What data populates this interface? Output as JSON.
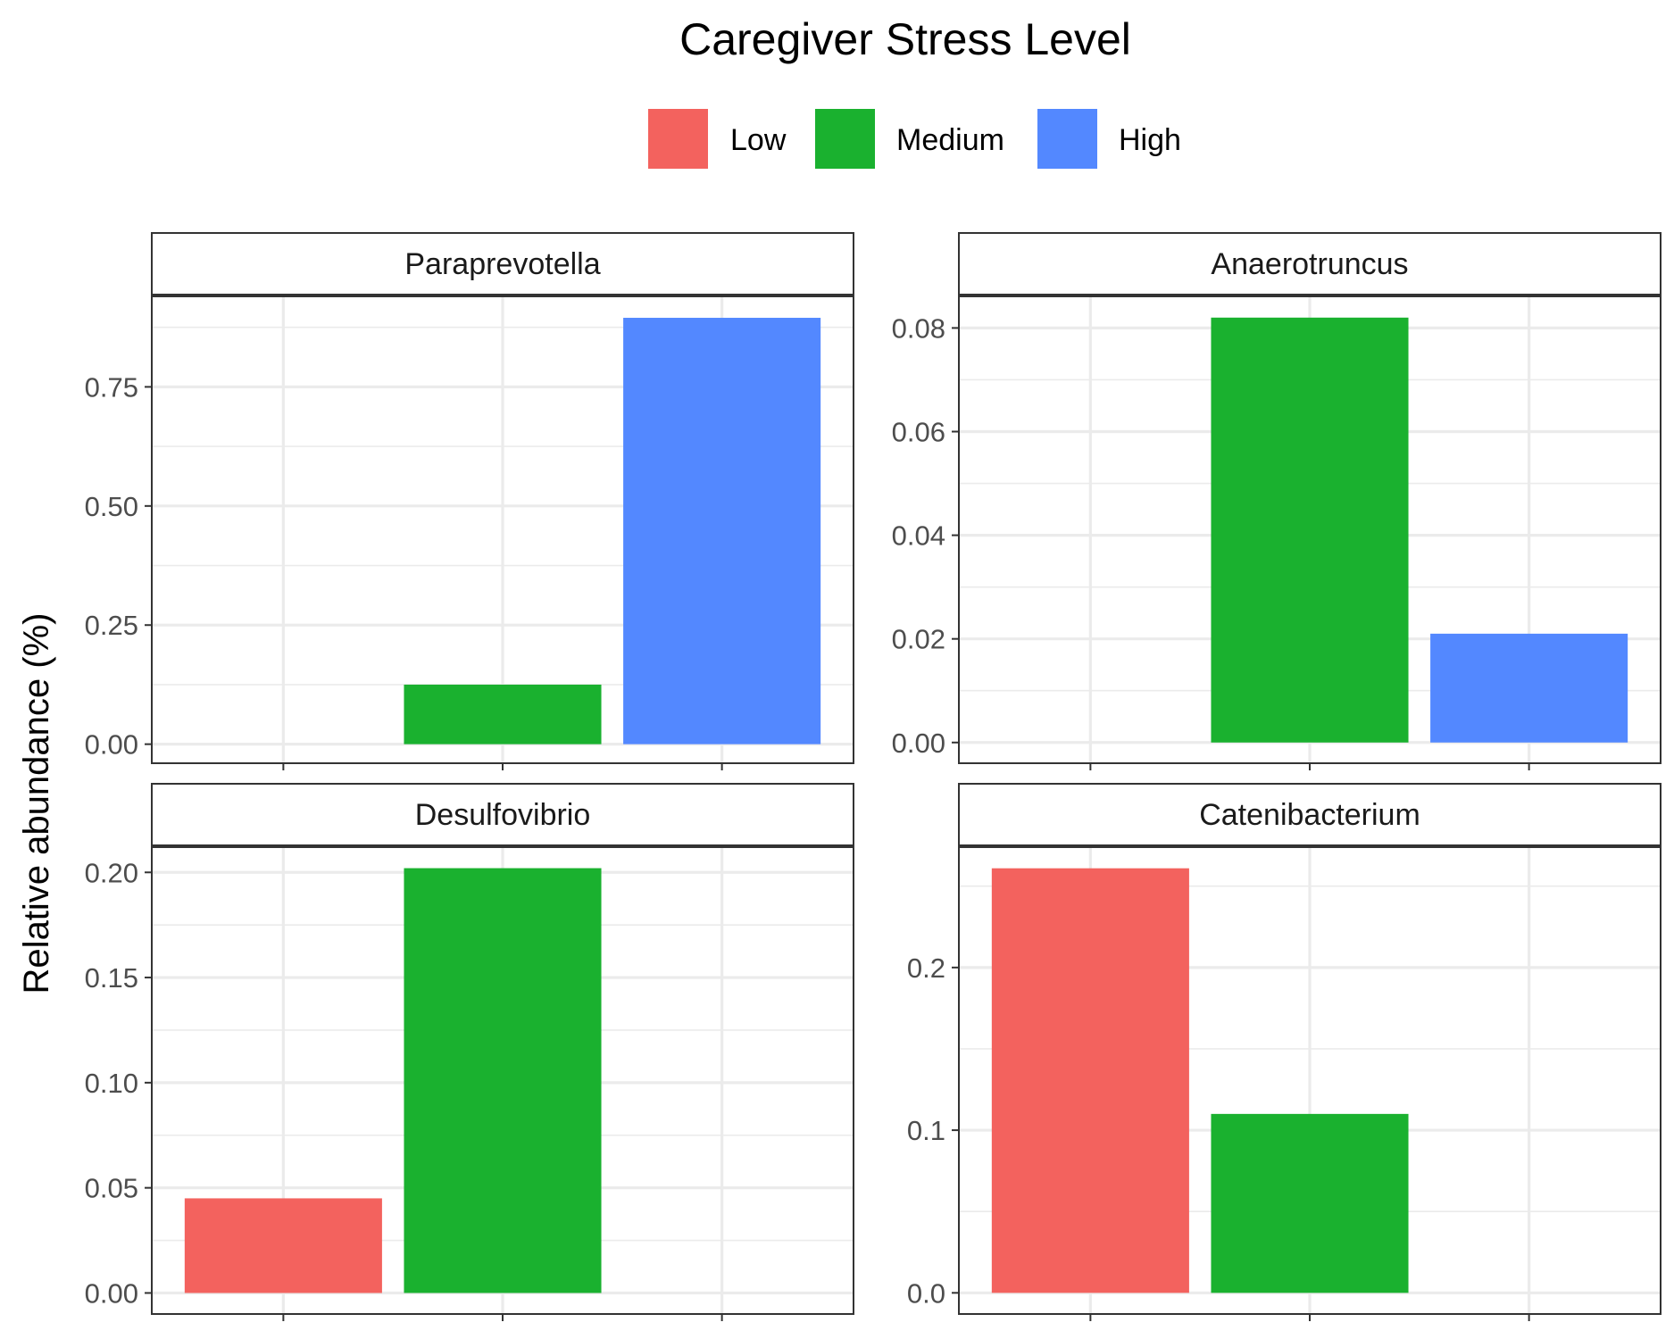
{
  "chart_data": {
    "type": "bar",
    "title": "",
    "legend": {
      "title": "Caregiver Stress Level",
      "position": "top",
      "items": [
        {
          "label": "Low",
          "color": "#F3625E"
        },
        {
          "label": "Medium",
          "color": "#1AB12F"
        },
        {
          "label": "High",
          "color": "#5388FF"
        }
      ]
    },
    "ylabel": "Relative abundance (%)",
    "xlabel": "",
    "categories": [
      "Low",
      "Medium",
      "High"
    ],
    "grid": true,
    "facets": [
      {
        "title": "Paraprevotella",
        "values": [
          0,
          0.125,
          0.895
        ],
        "ylim": [
          -0.04,
          0.94
        ],
        "yticks": [
          0,
          0.25,
          0.5,
          0.75
        ],
        "ytick_labels": [
          "0.00",
          "0.25",
          "0.50",
          "0.75"
        ]
      },
      {
        "title": "Anaerotruncus",
        "values": [
          0,
          0.082,
          0.021
        ],
        "ylim": [
          -0.004,
          0.0861
        ],
        "yticks": [
          0,
          0.02,
          0.04,
          0.06,
          0.08
        ],
        "ytick_labels": [
          "0.00",
          "0.02",
          "0.04",
          "0.06",
          "0.08"
        ]
      },
      {
        "title": "Desulfovibrio",
        "values": [
          0.045,
          0.202,
          0
        ],
        "ylim": [
          -0.01,
          0.212
        ],
        "yticks": [
          0,
          0.05,
          0.1,
          0.15,
          0.2
        ],
        "ytick_labels": [
          "0.00",
          "0.05",
          "0.10",
          "0.15",
          "0.20"
        ]
      },
      {
        "title": "Catenibacterium",
        "values": [
          0.261,
          0.11,
          0
        ],
        "ylim": [
          -0.013,
          0.274
        ],
        "yticks": [
          0,
          0.1,
          0.2
        ],
        "ytick_labels": [
          "0.0",
          "0.1",
          "0.2"
        ]
      }
    ]
  }
}
